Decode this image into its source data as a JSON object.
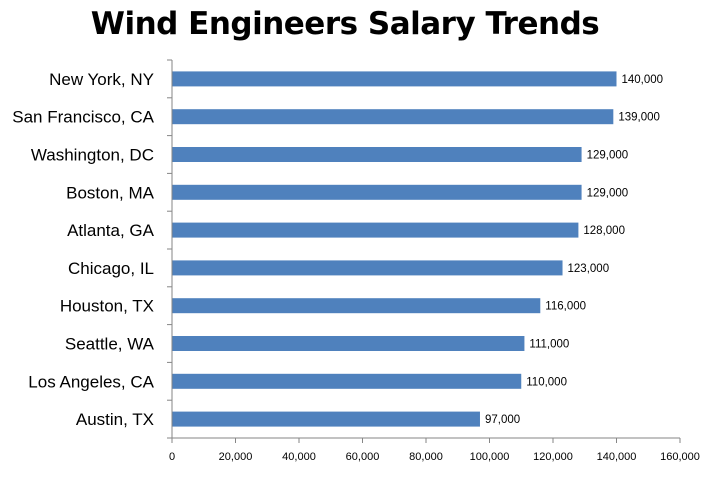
{
  "chart_data": {
    "type": "bar",
    "orientation": "horizontal",
    "title": "Wind Engineers Salary Trends",
    "categories": [
      "New York, NY",
      "San Francisco, CA",
      "Washington, DC",
      "Boston, MA",
      "Atlanta, GA",
      "Chicago, IL",
      "Houston, TX",
      "Seattle, WA",
      "Los Angeles, CA",
      "Austin, TX"
    ],
    "values": [
      140000,
      139000,
      129000,
      129000,
      128000,
      123000,
      116000,
      111000,
      110000,
      97000
    ],
    "data_labels": [
      "140,000",
      "139,000",
      "129,000",
      "129,000",
      "128,000",
      "123,000",
      "116,000",
      "111,000",
      "110,000",
      "97,000"
    ],
    "xlim": [
      0,
      160000
    ],
    "x_ticks": [
      0,
      20000,
      40000,
      60000,
      80000,
      100000,
      120000,
      140000,
      160000
    ],
    "x_tick_labels": [
      "0",
      "20,000",
      "40,000",
      "60,000",
      "80,000",
      "100,000",
      "120,000",
      "140,000",
      "160,000"
    ],
    "bar_color": "#4F81BD",
    "grid": false,
    "legend": "none"
  }
}
